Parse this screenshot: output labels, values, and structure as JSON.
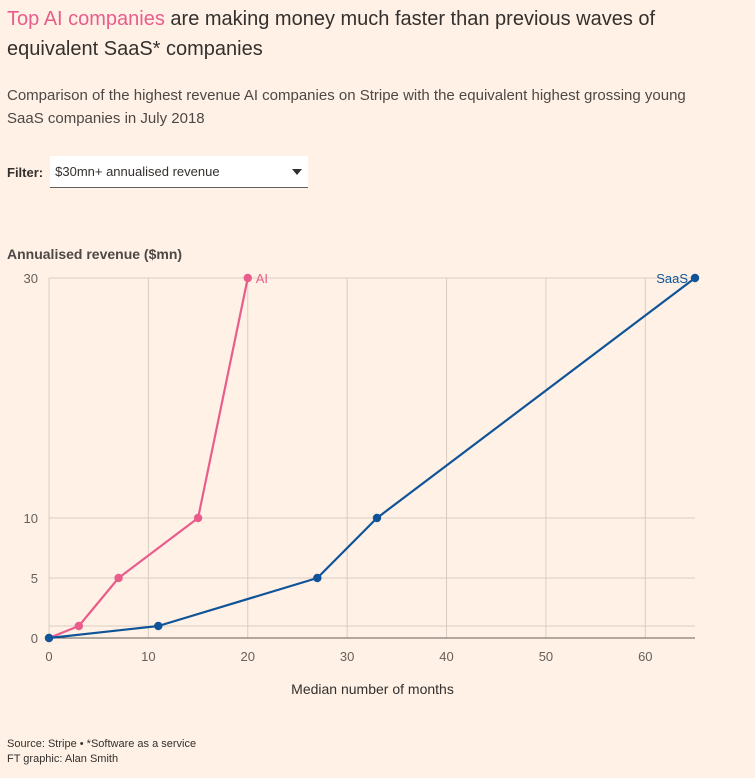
{
  "headline": {
    "accent": "Top AI companies",
    "rest": " are making money much faster than previous waves of equivalent SaaS* companies"
  },
  "subtitle": "Comparison of the highest revenue AI companies on Stripe with the equivalent highest grossing young SaaS companies in July 2018",
  "filter": {
    "label": "Filter:",
    "selected": "$30mn+ annualised revenue"
  },
  "footer": {
    "source": "Source: Stripe • *Software as a service",
    "credit": "FT graphic: Alan Smith"
  },
  "colors": {
    "background": "#fff1e5",
    "ai": "#e95d8c",
    "saas": "#0f5499",
    "grid": "#d9cdc3",
    "axis": "#66605c"
  },
  "chart_data": {
    "type": "line",
    "xlabel": "Median number of months",
    "ylabel": "Annualised revenue ($mn)",
    "xlim": [
      0,
      65
    ],
    "ylim": [
      0,
      30
    ],
    "xticks": [
      0,
      10,
      20,
      30,
      40,
      50,
      60
    ],
    "yticks": [
      0,
      5,
      10,
      30
    ],
    "grid": true,
    "series": [
      {
        "name": "AI",
        "color": "#e95d8c",
        "x": [
          0,
          3,
          7,
          15,
          20
        ],
        "y": [
          0,
          1,
          5,
          10,
          30
        ]
      },
      {
        "name": "SaaS",
        "color": "#0f5499",
        "x": [
          0,
          11,
          27,
          33,
          65
        ],
        "y": [
          0,
          1,
          5,
          10,
          30
        ]
      }
    ]
  }
}
